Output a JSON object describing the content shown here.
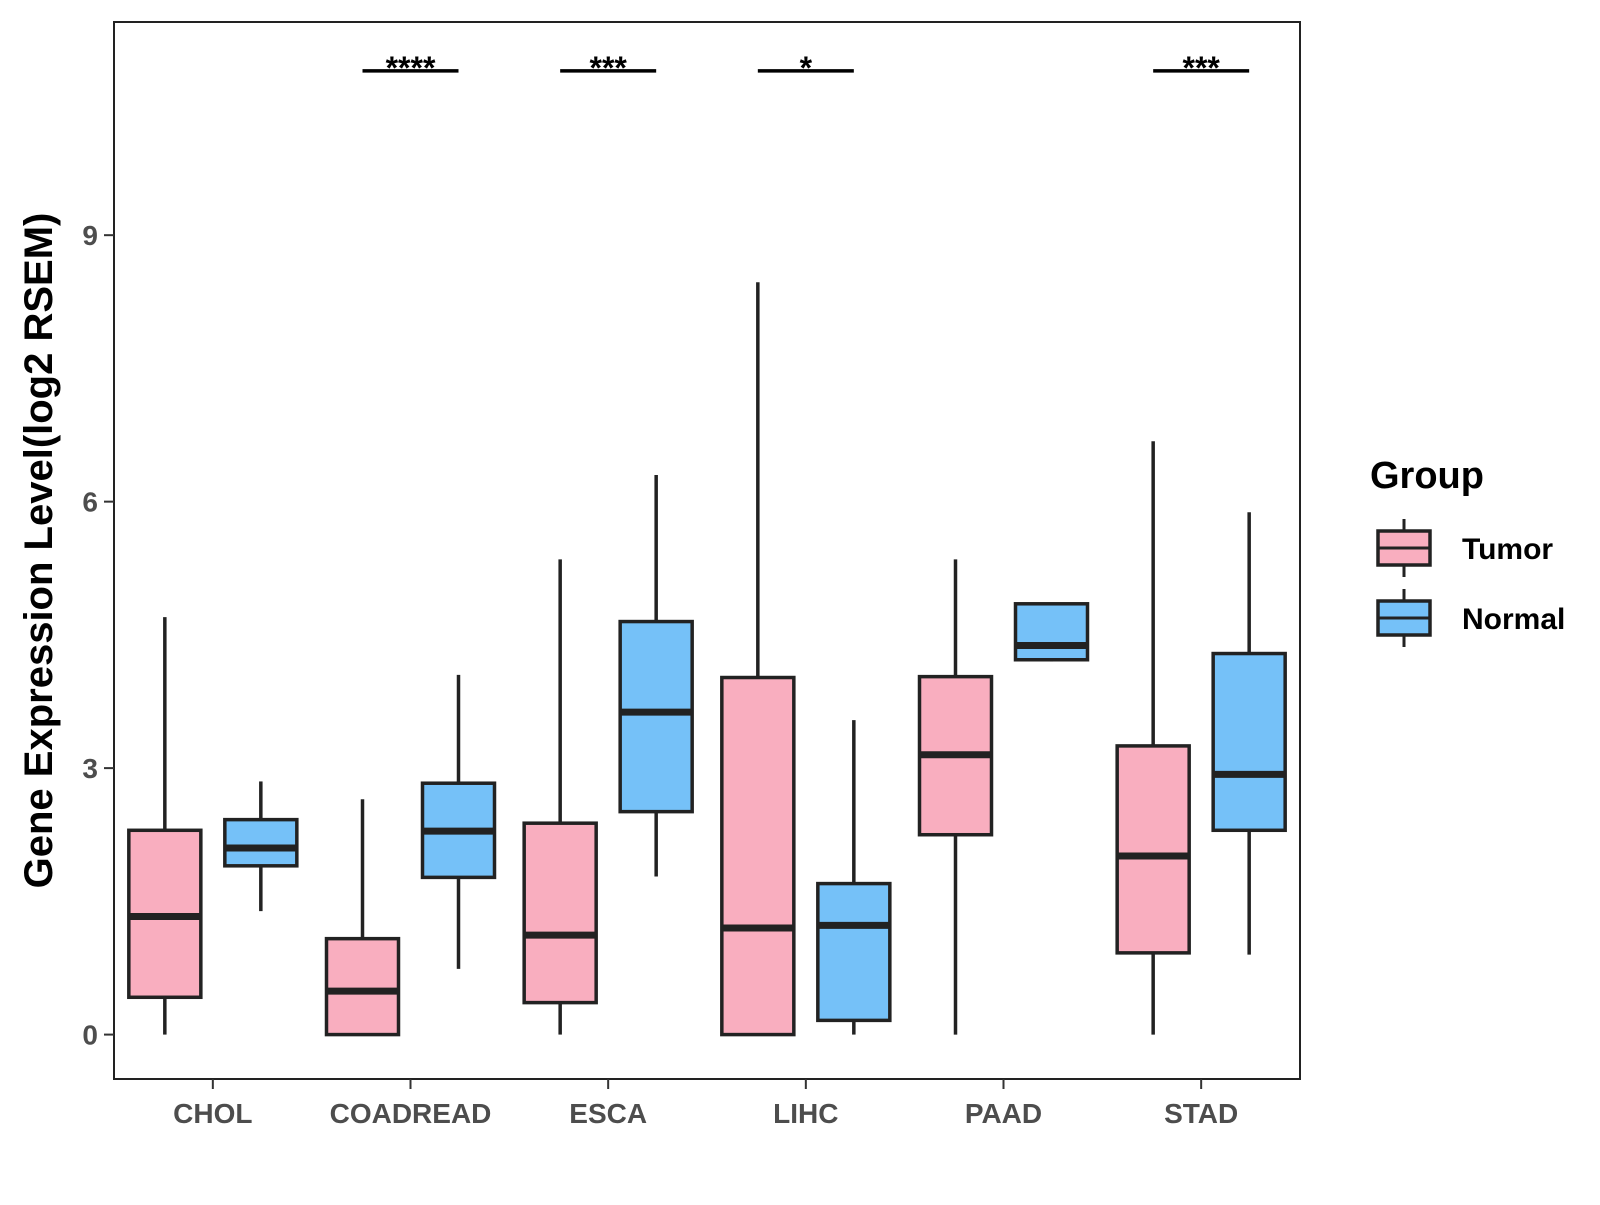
{
  "chart_data": {
    "type": "boxplot",
    "title": "",
    "xlabel": "",
    "ylabel": "Gene Expression Level(log2 RSEM)",
    "ylim": [
      -0.5,
      11.4
    ],
    "yticks": [
      0,
      3,
      6,
      9
    ],
    "categories": [
      "CHOL",
      "COADREAD",
      "ESCA",
      "LIHC",
      "PAAD",
      "STAD"
    ],
    "legend": {
      "title": "Group",
      "position": "right",
      "entries": [
        "Tumor",
        "Normal"
      ]
    },
    "series": [
      {
        "name": "Tumor",
        "color": "#F9AEBF",
        "boxes": [
          {
            "category": "CHOL",
            "min": 0.0,
            "q1": 0.42,
            "median": 1.33,
            "q3": 2.3,
            "max": 4.7
          },
          {
            "category": "COADREAD",
            "min": 0.0,
            "q1": 0.0,
            "median": 0.49,
            "q3": 1.08,
            "max": 2.65
          },
          {
            "category": "ESCA",
            "min": 0.0,
            "q1": 0.36,
            "median": 1.12,
            "q3": 2.38,
            "max": 5.35
          },
          {
            "category": "LIHC",
            "min": 0.0,
            "q1": 0.0,
            "median": 1.2,
            "q3": 4.02,
            "max": 8.47
          },
          {
            "category": "PAAD",
            "min": 0.0,
            "q1": 2.25,
            "median": 3.15,
            "q3": 4.03,
            "max": 5.35
          },
          {
            "category": "STAD",
            "min": 0.0,
            "q1": 0.92,
            "median": 2.01,
            "q3": 3.25,
            "max": 6.68
          }
        ]
      },
      {
        "name": "Normal",
        "color": "#75C1F8",
        "boxes": [
          {
            "category": "CHOL",
            "min": 1.39,
            "q1": 1.9,
            "median": 2.1,
            "q3": 2.42,
            "max": 2.85
          },
          {
            "category": "COADREAD",
            "min": 0.74,
            "q1": 1.77,
            "median": 2.29,
            "q3": 2.83,
            "max": 4.05
          },
          {
            "category": "ESCA",
            "min": 1.78,
            "q1": 2.51,
            "median": 3.63,
            "q3": 4.65,
            "max": 6.3
          },
          {
            "category": "LIHC",
            "min": 0.0,
            "q1": 0.16,
            "median": 1.23,
            "q3": 1.7,
            "max": 3.54
          },
          {
            "category": "PAAD",
            "min": 4.2,
            "q1": 4.22,
            "median": 4.38,
            "q3": 4.85,
            "max": 4.85
          },
          {
            "category": "STAD",
            "min": 0.9,
            "q1": 2.3,
            "median": 2.93,
            "q3": 4.29,
            "max": 5.88
          }
        ]
      }
    ],
    "significance": [
      {
        "category": "COADREAD",
        "label": "****",
        "y": 10.85
      },
      {
        "category": "ESCA",
        "label": "***",
        "y": 10.85
      },
      {
        "category": "LIHC",
        "label": "*",
        "y": 10.85
      },
      {
        "category": "STAD",
        "label": "***",
        "y": 10.85
      }
    ],
    "grid": false
  }
}
